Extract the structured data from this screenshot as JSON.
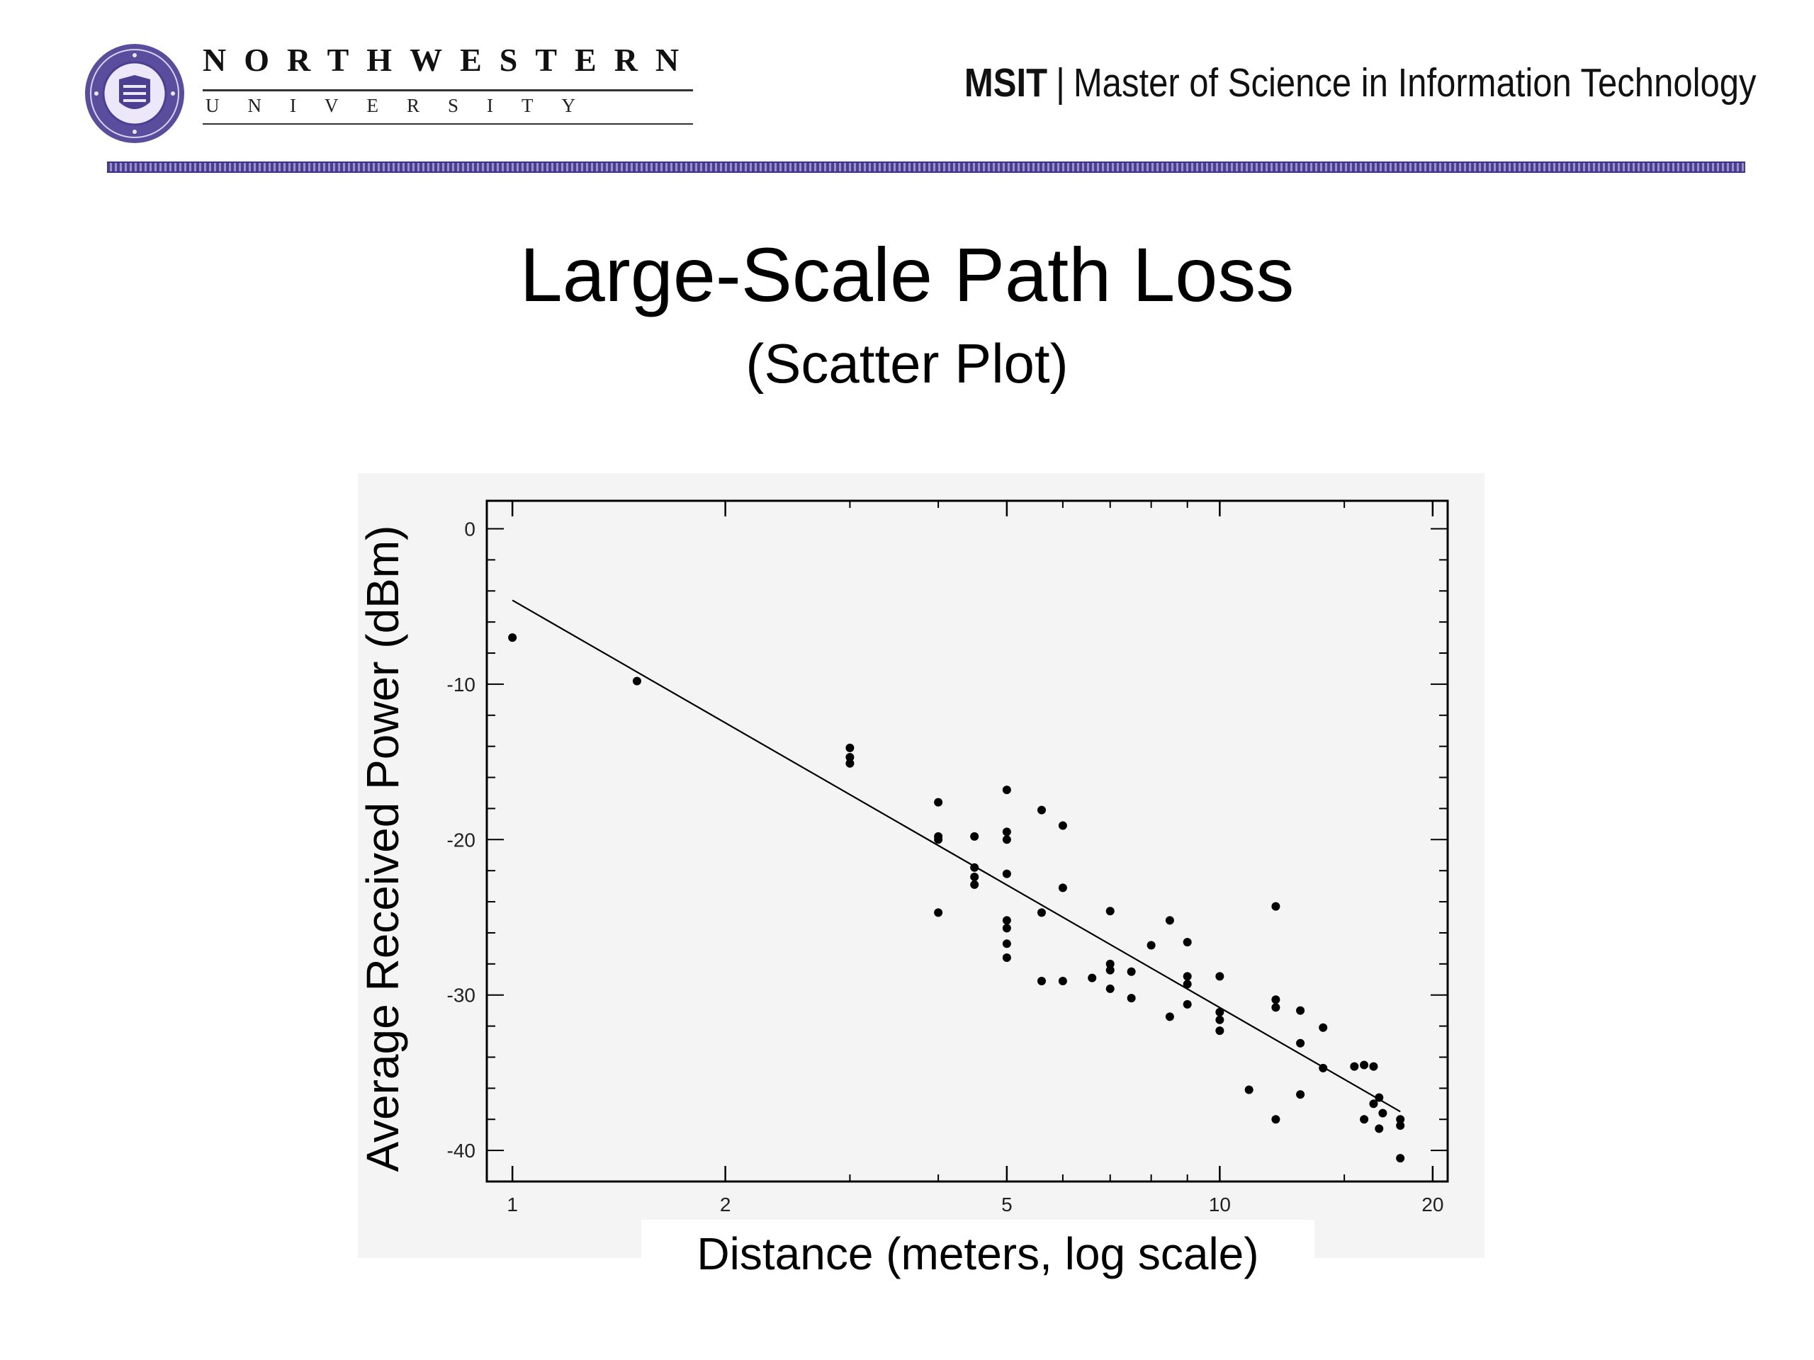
{
  "header": {
    "university_name": "NORTHWESTERN",
    "university_sub": "UNIVERSITY",
    "program_abbr": "MSIT",
    "program_sep": "|",
    "program_name": "Master of Science in Information Technology"
  },
  "slide": {
    "title": "Large-Scale Path Loss",
    "subtitle": "(Scatter Plot)"
  },
  "chart_data": {
    "type": "scatter",
    "title": "",
    "xlabel": "Distance (meters, log scale)",
    "ylabel": "Average Received Power (dBm)",
    "x_scale": "log",
    "xlim": [
      0.92,
      21
    ],
    "ylim": [
      -42,
      1.8
    ],
    "x_ticks": [
      1,
      2,
      5,
      10,
      20
    ],
    "x_tick_labels": [
      "1",
      "2",
      "5",
      "10",
      "20"
    ],
    "y_ticks": [
      0,
      -10,
      -20,
      -30,
      -40
    ],
    "y_tick_labels": [
      "0",
      "-10",
      "-20",
      "-30",
      "-40"
    ],
    "grid": false,
    "series": [
      {
        "points": [
          [
            1.0,
            -7.0
          ],
          [
            1.5,
            -9.8
          ],
          [
            3.0,
            -14.1
          ],
          [
            3.0,
            -14.7
          ],
          [
            3.0,
            -15.1
          ],
          [
            4.0,
            -17.6
          ],
          [
            4.0,
            -19.8
          ],
          [
            4.0,
            -20.0
          ],
          [
            4.0,
            -24.7
          ],
          [
            4.5,
            -19.8
          ],
          [
            4.5,
            -21.8
          ],
          [
            4.5,
            -22.4
          ],
          [
            4.5,
            -22.9
          ],
          [
            5.0,
            -16.8
          ],
          [
            5.0,
            -19.5
          ],
          [
            5.0,
            -20.0
          ],
          [
            5.0,
            -22.2
          ],
          [
            5.0,
            -25.2
          ],
          [
            5.0,
            -25.7
          ],
          [
            5.0,
            -26.7
          ],
          [
            5.0,
            -27.6
          ],
          [
            5.6,
            -18.1
          ],
          [
            5.6,
            -24.7
          ],
          [
            5.6,
            -29.1
          ],
          [
            6.0,
            -19.1
          ],
          [
            6.0,
            -23.1
          ],
          [
            6.0,
            -29.1
          ],
          [
            6.6,
            -28.9
          ],
          [
            7.0,
            -24.6
          ],
          [
            7.0,
            -28.0
          ],
          [
            7.0,
            -28.4
          ],
          [
            7.0,
            -29.6
          ],
          [
            7.5,
            -28.5
          ],
          [
            7.5,
            -30.2
          ],
          [
            8.0,
            -26.8
          ],
          [
            8.5,
            -25.2
          ],
          [
            8.5,
            -31.4
          ],
          [
            9.0,
            -26.6
          ],
          [
            9.0,
            -28.8
          ],
          [
            9.0,
            -29.3
          ],
          [
            9.0,
            -30.6
          ],
          [
            10.0,
            -28.8
          ],
          [
            10.0,
            -31.1
          ],
          [
            10.0,
            -31.6
          ],
          [
            10.0,
            -32.3
          ],
          [
            11.0,
            -36.1
          ],
          [
            12.0,
            -24.3
          ],
          [
            12.0,
            -30.3
          ],
          [
            12.0,
            -30.8
          ],
          [
            12.0,
            -38.0
          ],
          [
            13.0,
            -31.0
          ],
          [
            13.0,
            -33.1
          ],
          [
            13.0,
            -36.4
          ],
          [
            14.0,
            -32.1
          ],
          [
            14.0,
            -34.7
          ],
          [
            15.5,
            -34.6
          ],
          [
            16.0,
            -34.5
          ],
          [
            16.5,
            -34.6
          ],
          [
            16.0,
            -38.0
          ],
          [
            16.5,
            -37.0
          ],
          [
            16.8,
            -36.6
          ],
          [
            16.8,
            -38.6
          ],
          [
            17.0,
            -37.6
          ],
          [
            18.0,
            -38.0
          ],
          [
            18.0,
            -38.4
          ],
          [
            18.0,
            -40.5
          ]
        ]
      }
    ],
    "fit_line": {
      "from": [
        1.0,
        -4.6
      ],
      "to": [
        18.0,
        -37.5
      ]
    }
  },
  "colors": {
    "ink": "#000000",
    "chart_background": "#f4f4f4",
    "band": "#4a3f8f",
    "seal": "#4b3f91"
  }
}
